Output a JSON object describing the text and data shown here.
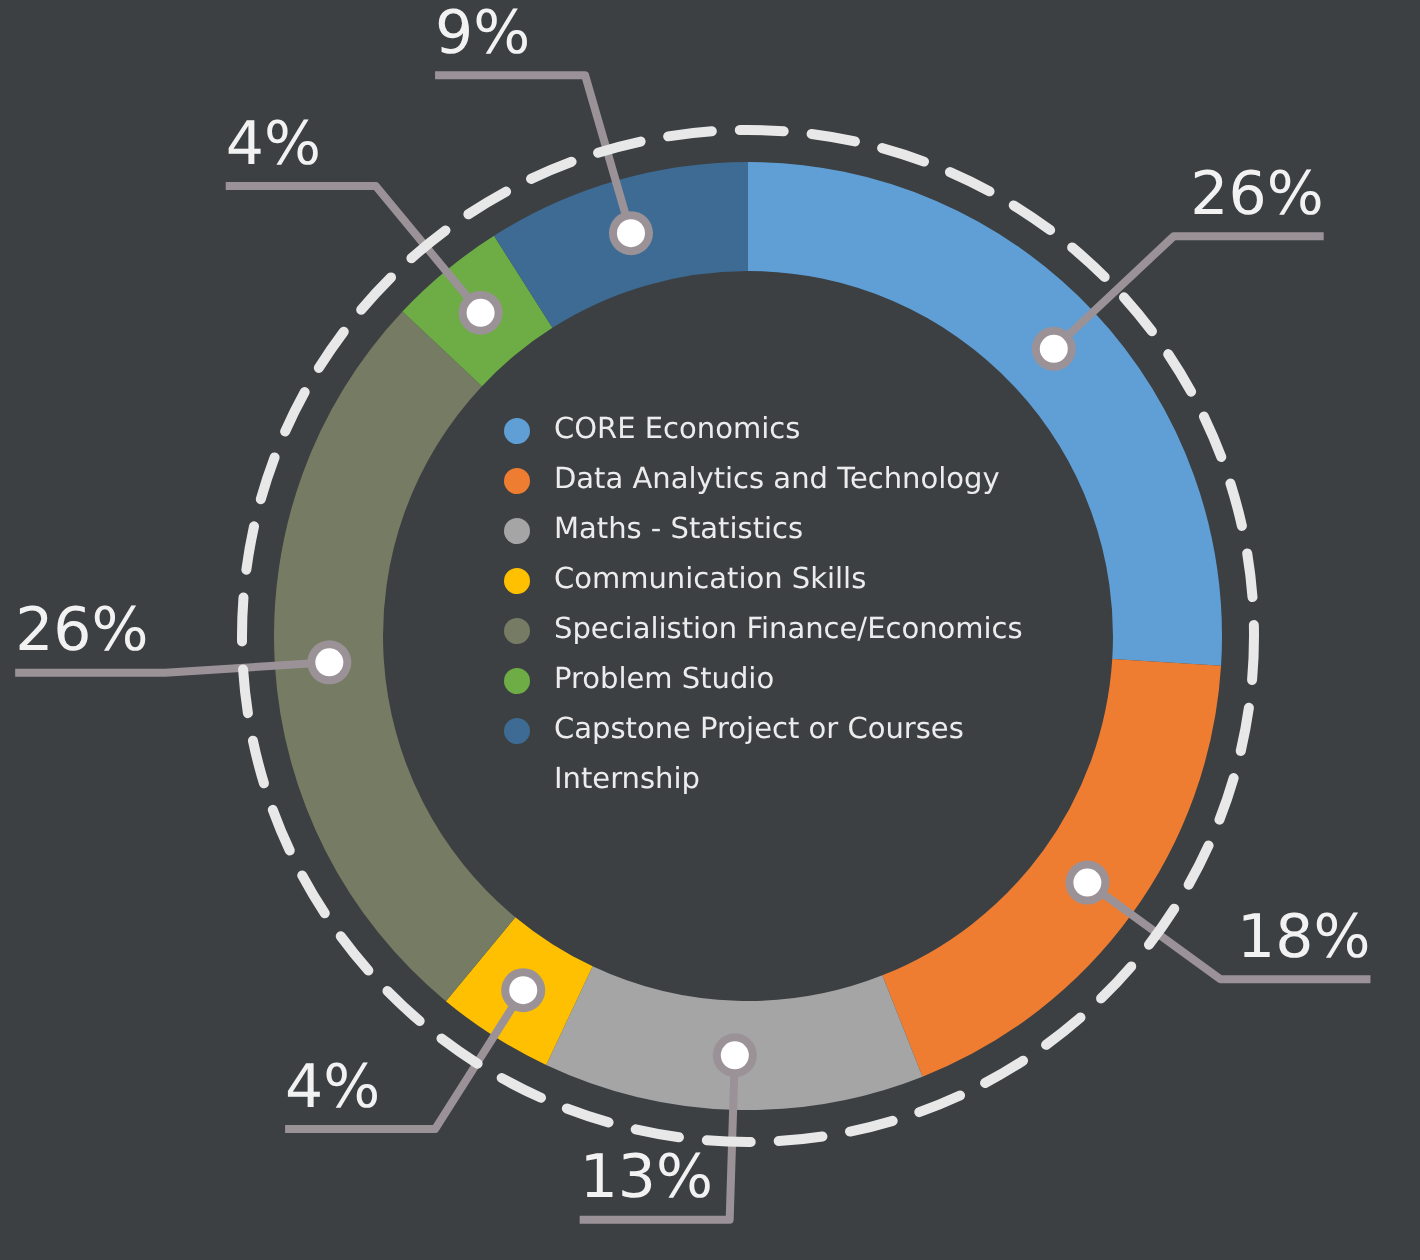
{
  "chart_data": {
    "type": "donut",
    "categories": [
      "CORE Economics",
      "Data Analytics and Technology",
      "Maths - Statistics",
      "Communication Skills",
      "Specialistion Finance/Economics",
      "Problem Studio",
      "Capstone Project or Courses Internship"
    ],
    "values": [
      26,
      18,
      13,
      4,
      26,
      4,
      9
    ],
    "value_labels": [
      "26%",
      "18%",
      "13%",
      "4%",
      "26%",
      "4%",
      "9%"
    ],
    "colors": [
      "#5f9fd6",
      "#ee7d32",
      "#a6a5a6",
      "#fec000",
      "#767b63",
      "#6eac46",
      "#3e6b94"
    ],
    "legend": "center"
  }
}
